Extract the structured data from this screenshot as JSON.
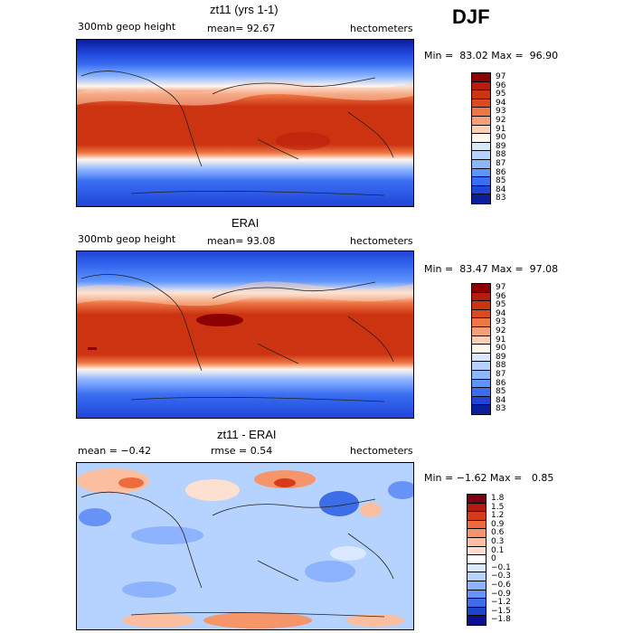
{
  "header": {
    "season": "DJF"
  },
  "panels": [
    {
      "title": "zt11 (yrs 1-1)",
      "left_label": "300mb geop height",
      "mean_label": "mean=  92.67",
      "units": "hectometers",
      "minmax": "Min =  83.02 Max =  96.90",
      "colorbar": [
        "97",
        "96",
        "95",
        "94",
        "93",
        "92",
        "91",
        "90",
        "89",
        "88",
        "87",
        "86",
        "85",
        "84",
        "83"
      ]
    },
    {
      "title": "ERAI",
      "left_label": "300mb geop height",
      "mean_label": "mean=  93.08",
      "units": "hectometers",
      "minmax": "Min =  83.47 Max =  97.08",
      "colorbar": [
        "97",
        "96",
        "95",
        "94",
        "93",
        "92",
        "91",
        "90",
        "89",
        "88",
        "87",
        "86",
        "85",
        "84",
        "83"
      ]
    },
    {
      "title": "zt11 - ERAI",
      "left_label": "mean =  −0.42",
      "mean_label": "rmse =   0.54",
      "units": "hectometers",
      "minmax": "Min = −1.62 Max =   0.85",
      "colorbar": [
        "1.8",
        "1.5",
        "1.2",
        "0.9",
        "0.6",
        "0.3",
        "0.1",
        "0",
        "−0.1",
        "−0.3",
        "−0.6",
        "−0.9",
        "−1.2",
        "−1.5",
        "−1.8"
      ]
    }
  ],
  "colors": {
    "abs_scale": [
      "#8b0000",
      "#b71c0c",
      "#cc3311",
      "#dd4a22",
      "#ee7744",
      "#f4a07a",
      "#fbd0b6",
      "#fff6ee",
      "#d8e8ff",
      "#b6d1ff",
      "#8db6ff",
      "#5f95fb",
      "#3a6ef2",
      "#1f45d9",
      "#0a1d9a"
    ],
    "diff_scale": [
      "#7a0010",
      "#b01c12",
      "#d73a1a",
      "#ef6a3c",
      "#f6946a",
      "#fbbfa0",
      "#fde0d0",
      "#ffffff",
      "#dbe9ff",
      "#b6d2ff",
      "#8db3ff",
      "#6793f7",
      "#3d6ee8",
      "#1c44c8",
      "#0a108e"
    ]
  }
}
